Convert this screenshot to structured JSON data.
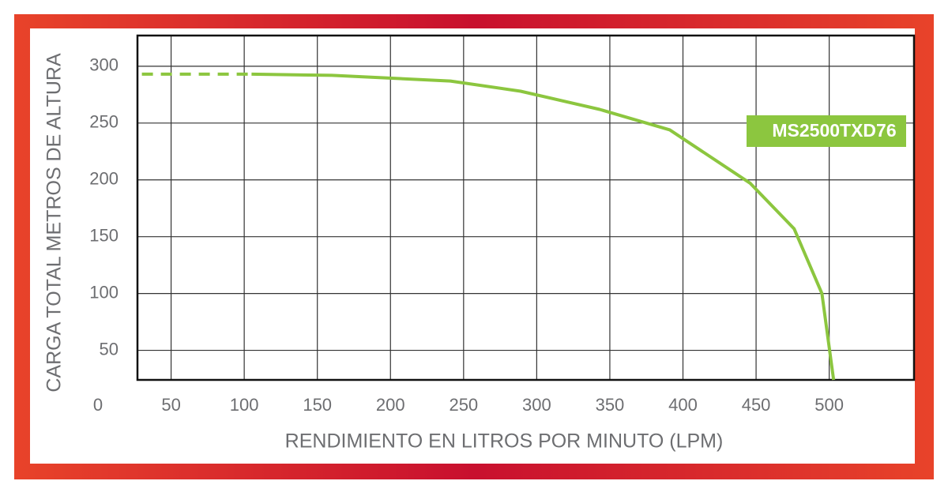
{
  "chart_data": {
    "type": "line",
    "xlabel": "RENDIMIENTO EN LITROS POR MINUTO (LPM)",
    "ylabel": "CARGA TOTAL METROS DE ALTURA",
    "xlim": [
      27,
      558
    ],
    "ylim": [
      24,
      327
    ],
    "xticks": [
      0,
      50,
      100,
      150,
      200,
      250,
      300,
      350,
      400,
      450,
      500
    ],
    "yticks": [
      50,
      100,
      150,
      200,
      250,
      300
    ],
    "grid": true,
    "series": [
      {
        "color": "#8cc63f",
        "dashed": true,
        "x": [
          30,
          105
        ],
        "values": [
          293,
          293
        ]
      },
      {
        "name": "MS2500TXD76",
        "color": "#8cc63f",
        "dashed": false,
        "x": [
          105,
          160,
          241,
          289,
          343,
          391,
          446,
          476,
          495,
          503
        ],
        "values": [
          293,
          292,
          287,
          278,
          262,
          244,
          197,
          157,
          100,
          24
        ]
      }
    ]
  }
}
